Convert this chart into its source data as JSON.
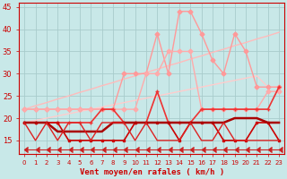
{
  "background_color": "#c8e8e8",
  "grid_color": "#a8cccc",
  "xlabel": "Vent moyen/en rafales ( km/h )",
  "ylim": [
    12,
    46
  ],
  "yticks": [
    15,
    20,
    25,
    30,
    35,
    40,
    45
  ],
  "x_labels": [
    "0",
    "1",
    "2",
    "3",
    "4",
    "5",
    "6",
    "7",
    "8",
    "9",
    "10",
    "11",
    "12",
    "13",
    "14",
    "15",
    "16",
    "17",
    "18",
    "19",
    "20",
    "21",
    "22",
    "23"
  ],
  "lines": [
    {
      "y": [
        22,
        22.8,
        23.5,
        24.3,
        25.0,
        25.8,
        26.5,
        27.3,
        28.0,
        28.8,
        29.5,
        30.3,
        31.0,
        31.8,
        32.5,
        33.3,
        34.0,
        34.8,
        35.5,
        36.3,
        37.0,
        37.8,
        38.5,
        39.3
      ],
      "color": "#ffbbbb",
      "lw": 1.0,
      "marker": null,
      "ms": 0
    },
    {
      "y": [
        19,
        19.5,
        20.0,
        20.5,
        21.0,
        21.5,
        22.0,
        22.5,
        23.0,
        23.5,
        24.0,
        24.5,
        25.0,
        25.5,
        26.0,
        26.5,
        27.0,
        27.5,
        28.0,
        28.5,
        29.0,
        29.5,
        27.0,
        27.0
      ],
      "color": "#ffcccc",
      "lw": 1.0,
      "marker": null,
      "ms": 0
    },
    {
      "y": [
        22,
        22,
        22,
        22,
        22,
        22,
        22,
        22,
        22,
        30,
        30,
        30,
        39,
        30,
        44,
        44,
        39,
        33,
        30,
        39,
        35,
        27,
        27,
        27
      ],
      "color": "#ff9999",
      "lw": 1.0,
      "marker": "D",
      "ms": 2.5
    },
    {
      "y": [
        22,
        22,
        22,
        22,
        22,
        22,
        22,
        22,
        22,
        22,
        22,
        30,
        30,
        35,
        35,
        35,
        22,
        22,
        22,
        22,
        22,
        22,
        26,
        26
      ],
      "color": "#ffaaaa",
      "lw": 1.0,
      "marker": "D",
      "ms": 2.5
    },
    {
      "y": [
        19,
        19,
        19,
        19,
        19,
        19,
        19,
        22,
        22,
        19,
        19,
        19,
        26,
        19,
        19,
        19,
        22,
        22,
        22,
        22,
        22,
        22,
        22,
        27
      ],
      "color": "#ee3333",
      "lw": 1.2,
      "marker": "+",
      "ms": 3.5
    },
    {
      "y": [
        19,
        19,
        19,
        19,
        15,
        15,
        15,
        15,
        15,
        15,
        19,
        19,
        19,
        19,
        15,
        19,
        19,
        19,
        15,
        15,
        15,
        19,
        19,
        15
      ],
      "color": "#cc0000",
      "lw": 1.2,
      "marker": "s",
      "ms": 2
    },
    {
      "y": [
        19,
        19,
        19,
        17,
        17,
        17,
        17,
        17,
        19,
        19,
        19,
        19,
        19,
        19,
        19,
        19,
        19,
        19,
        19,
        20,
        20,
        20,
        19,
        19
      ],
      "color": "#aa0000",
      "lw": 1.8,
      "marker": null,
      "ms": 0
    },
    {
      "y": [
        19,
        15,
        19,
        15,
        19,
        19,
        15,
        19,
        19,
        19,
        15,
        19,
        15,
        15,
        15,
        19,
        15,
        15,
        19,
        15,
        15,
        15,
        15,
        15
      ],
      "color": "#dd2222",
      "lw": 1.0,
      "marker": null,
      "ms": 0
    },
    {
      "y": [
        13,
        13,
        13,
        13,
        13,
        13,
        13,
        13,
        13,
        13,
        13,
        13,
        13,
        13,
        13,
        13,
        13,
        13,
        13,
        13,
        13,
        13,
        13,
        13
      ],
      "color": "#cc2222",
      "lw": 0.8,
      "marker": 4,
      "ms": 4
    }
  ]
}
